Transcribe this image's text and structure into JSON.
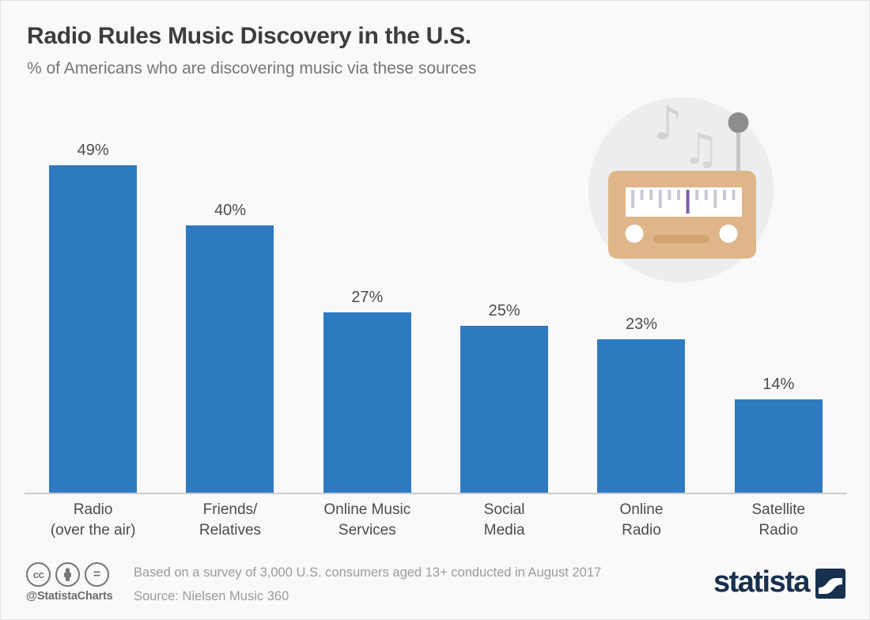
{
  "header": {
    "title": "Radio Rules Music Discovery in the U.S.",
    "subtitle": "% of Americans who are discovering music via these sources"
  },
  "chart_data": {
    "type": "bar",
    "orientation": "vertical",
    "title": "Radio Rules Music Discovery in the U.S.",
    "subtitle": "% of Americans who are discovering music via these sources",
    "categories": [
      "Radio (over the air)",
      "Friends/ Relatives",
      "Online Music Services",
      "Social Media",
      "Online Radio",
      "Satellite Radio"
    ],
    "category_lines": [
      [
        "Radio",
        "(over the air)"
      ],
      [
        "Friends/",
        "Relatives"
      ],
      [
        "Online Music",
        "Services"
      ],
      [
        "Social",
        "Media"
      ],
      [
        "Online",
        "Radio"
      ],
      [
        "Satellite",
        "Radio"
      ]
    ],
    "values": [
      49,
      40,
      27,
      25,
      23,
      14
    ],
    "value_labels": [
      "49%",
      "40%",
      "27%",
      "25%",
      "23%",
      "14%"
    ],
    "unit": "%",
    "bar_color": "#2e7ac0",
    "value_label_position": "above",
    "grid": false,
    "legend": false,
    "baseline_axis": true
  },
  "colors": {
    "accent_blue": "#2e7ac0",
    "brand_navy": "#17304e",
    "radio_body_tan": "#deb68a",
    "dial_marker_purple": "#7a5ca8",
    "background": "#f9f9f9"
  },
  "illustration": {
    "name": "radio-with-music-notes",
    "icons": [
      "music-note-icon",
      "beamed-music-notes-icon",
      "antenna-icon",
      "radio-icon",
      "tuning-dial-icon",
      "knob-icon"
    ]
  },
  "footer": {
    "license_icons": [
      "cc-icon",
      "attribution-person-icon",
      "equals-icon"
    ],
    "handle": "@StatistaCharts",
    "note": "Based on a survey of 3,000 U.S. consumers aged 13+ conducted in August 2017",
    "source": "Source: Nielsen Music 360",
    "brand_wordmark": "statista"
  }
}
